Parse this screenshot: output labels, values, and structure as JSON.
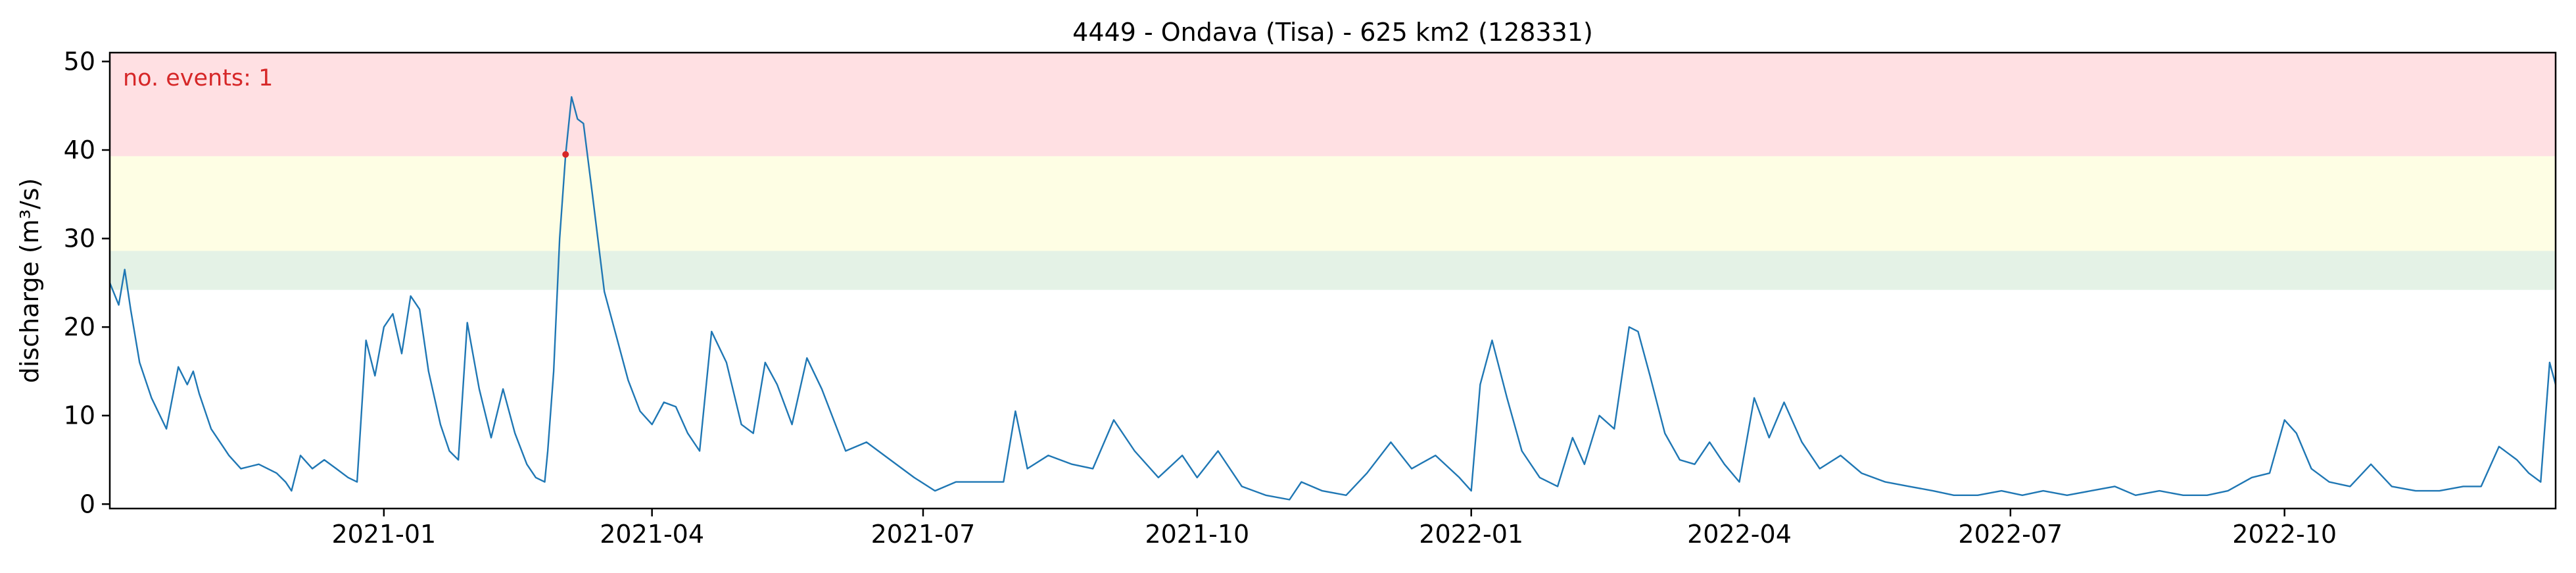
{
  "chart_data": {
    "type": "line",
    "title": "4449 - Ondava (Tisa) - 625 km2 (128331)",
    "xlabel": "",
    "ylabel": "discharge (m³/s)",
    "ylim": [
      -0.5,
      51
    ],
    "ytick_values": [
      0,
      10,
      20,
      30,
      40,
      50
    ],
    "ytick_labels": [
      "0",
      "10",
      "20",
      "30",
      "40",
      "50"
    ],
    "xrange_dates": [
      "2020-10-01",
      "2022-12-31"
    ],
    "xtick_dates": [
      "2021-01-01",
      "2021-04-01",
      "2021-07-01",
      "2021-10-01",
      "2022-01-01",
      "2022-04-01",
      "2022-07-01",
      "2022-10-01"
    ],
    "xtick_labels": [
      "2021-01",
      "2021-04",
      "2021-07",
      "2021-10",
      "2022-01",
      "2022-04",
      "2022-07",
      "2022-10"
    ],
    "threshold_bands": [
      {
        "name": "high",
        "from": 39.3,
        "to": 51,
        "color": "#ffe0e3"
      },
      {
        "name": "medium",
        "from": 28.6,
        "to": 39.3,
        "color": "#fefee4"
      },
      {
        "name": "low",
        "from": 24.2,
        "to": 28.6,
        "color": "#e4f2e6"
      }
    ],
    "series": [
      {
        "name": "discharge",
        "color": "#1f77b4",
        "x": [
          "2020-10-01",
          "2020-10-04",
          "2020-10-06",
          "2020-10-08",
          "2020-10-11",
          "2020-10-15",
          "2020-10-20",
          "2020-10-24",
          "2020-10-27",
          "2020-10-29",
          "2020-10-31",
          "2020-11-02",
          "2020-11-04",
          "2020-11-06",
          "2020-11-08",
          "2020-11-10",
          "2020-11-14",
          "2020-11-20",
          "2020-11-26",
          "2020-11-29",
          "2020-12-01",
          "2020-12-04",
          "2020-12-08",
          "2020-12-12",
          "2020-12-16",
          "2020-12-20",
          "2020-12-23",
          "2020-12-26",
          "2020-12-29",
          "2021-01-01",
          "2021-01-04",
          "2021-01-07",
          "2021-01-10",
          "2021-01-13",
          "2021-01-16",
          "2021-01-20",
          "2021-01-23",
          "2021-01-26",
          "2021-01-29",
          "2021-02-02",
          "2021-02-06",
          "2021-02-10",
          "2021-02-14",
          "2021-02-18",
          "2021-02-21",
          "2021-02-24",
          "2021-02-25",
          "2021-02-27",
          "2021-03-01",
          "2021-03-03",
          "2021-03-05",
          "2021-03-07",
          "2021-03-09",
          "2021-03-12",
          "2021-03-16",
          "2021-03-20",
          "2021-03-24",
          "2021-03-28",
          "2021-04-01",
          "2021-04-05",
          "2021-04-09",
          "2021-04-13",
          "2021-04-17",
          "2021-04-21",
          "2021-04-26",
          "2021-05-01",
          "2021-05-05",
          "2021-05-09",
          "2021-05-13",
          "2021-05-18",
          "2021-05-23",
          "2021-05-28",
          "2021-06-05",
          "2021-06-12",
          "2021-06-20",
          "2021-06-28",
          "2021-07-05",
          "2021-07-12",
          "2021-07-20",
          "2021-07-28",
          "2021-08-01",
          "2021-08-05",
          "2021-08-12",
          "2021-08-20",
          "2021-08-27",
          "2021-09-03",
          "2021-09-10",
          "2021-09-18",
          "2021-09-26",
          "2021-10-01",
          "2021-10-08",
          "2021-10-16",
          "2021-10-24",
          "2021-11-01",
          "2021-11-05",
          "2021-11-12",
          "2021-11-20",
          "2021-11-27",
          "2021-12-05",
          "2021-12-12",
          "2021-12-20",
          "2021-12-28",
          "2022-01-01",
          "2022-01-04",
          "2022-01-08",
          "2022-01-13",
          "2022-01-18",
          "2022-01-24",
          "2022-01-30",
          "2022-02-04",
          "2022-02-08",
          "2022-02-13",
          "2022-02-18",
          "2022-02-23",
          "2022-02-26",
          "2022-03-02",
          "2022-03-07",
          "2022-03-12",
          "2022-03-17",
          "2022-03-22",
          "2022-03-27",
          "2022-04-01",
          "2022-04-06",
          "2022-04-11",
          "2022-04-16",
          "2022-04-22",
          "2022-04-28",
          "2022-05-05",
          "2022-05-12",
          "2022-05-20",
          "2022-05-28",
          "2022-06-05",
          "2022-06-12",
          "2022-06-20",
          "2022-06-28",
          "2022-07-05",
          "2022-07-12",
          "2022-07-20",
          "2022-07-28",
          "2022-08-05",
          "2022-08-12",
          "2022-08-20",
          "2022-08-28",
          "2022-09-05",
          "2022-09-12",
          "2022-09-20",
          "2022-09-26",
          "2022-10-01",
          "2022-10-05",
          "2022-10-10",
          "2022-10-16",
          "2022-10-23",
          "2022-10-30",
          "2022-11-06",
          "2022-11-14",
          "2022-11-22",
          "2022-11-30",
          "2022-12-06",
          "2022-12-12",
          "2022-12-18",
          "2022-12-22",
          "2022-12-26",
          "2022-12-29",
          "2022-12-31"
        ],
        "y": [
          25.0,
          22.5,
          26.5,
          22.0,
          16.0,
          12.0,
          8.5,
          15.5,
          13.5,
          15.0,
          12.5,
          10.5,
          8.5,
          7.5,
          6.5,
          5.5,
          4.0,
          4.5,
          3.5,
          2.5,
          1.5,
          5.5,
          4.0,
          5.0,
          4.0,
          3.0,
          2.5,
          18.5,
          14.5,
          20.0,
          21.5,
          17.0,
          23.5,
          22.0,
          15.0,
          9.0,
          6.0,
          5.0,
          20.5,
          13.0,
          7.5,
          13.0,
          8.0,
          4.5,
          3.0,
          2.5,
          6.0,
          15.0,
          30.0,
          39.5,
          46.0,
          43.5,
          43.0,
          35.0,
          24.0,
          19.0,
          14.0,
          10.5,
          9.0,
          11.5,
          11.0,
          8.0,
          6.0,
          19.5,
          16.0,
          9.0,
          8.0,
          16.0,
          13.5,
          9.0,
          16.5,
          13.0,
          6.0,
          7.0,
          5.0,
          3.0,
          1.5,
          2.5,
          2.5,
          2.5,
          10.5,
          4.0,
          5.5,
          4.5,
          4.0,
          9.5,
          6.0,
          3.0,
          5.5,
          3.0,
          6.0,
          2.0,
          1.0,
          0.5,
          2.5,
          1.5,
          1.0,
          3.5,
          7.0,
          4.0,
          5.5,
          3.0,
          1.5,
          13.5,
          18.5,
          12.0,
          6.0,
          3.0,
          2.0,
          7.5,
          4.5,
          10.0,
          8.5,
          20.0,
          19.5,
          14.5,
          8.0,
          5.0,
          4.5,
          7.0,
          4.5,
          2.5,
          12.0,
          7.5,
          11.5,
          7.0,
          4.0,
          5.5,
          3.5,
          2.5,
          2.0,
          1.5,
          1.0,
          1.0,
          1.5,
          1.0,
          1.5,
          1.0,
          1.5,
          2.0,
          1.0,
          1.5,
          1.0,
          1.0,
          1.5,
          3.0,
          3.5,
          9.5,
          8.0,
          4.0,
          2.5,
          2.0,
          4.5,
          2.0,
          1.5,
          1.5,
          2.0,
          2.0,
          6.5,
          5.0,
          3.5,
          2.5,
          16.0,
          13.5
        ]
      }
    ],
    "events": [
      {
        "x": "2021-03-03",
        "y": 39.5,
        "color": "#d62728"
      }
    ],
    "annotations": [
      {
        "text": "no. events: 1",
        "color": "#d62728",
        "position": "top-left"
      }
    ],
    "grid": false,
    "legend": "none"
  }
}
